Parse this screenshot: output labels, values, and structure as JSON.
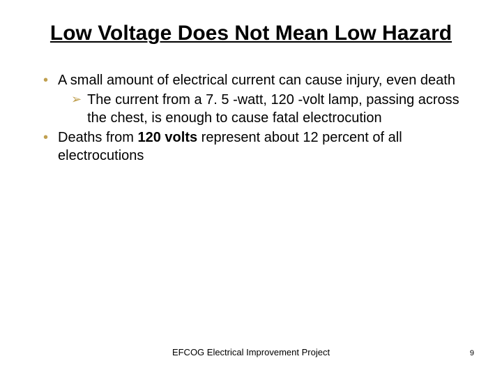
{
  "title": "Low Voltage Does Not Mean Low Hazard",
  "bullets": {
    "item0": "A small amount of electrical current can cause injury, even death",
    "sub0": "The current from a 7. 5 -watt, 120 -volt lamp, passing across the chest, is enough to cause fatal electrocution",
    "item1_pre": "Deaths from ",
    "item1_bold": "120 volts",
    "item1_post": " represent about 12 percent of all electrocutions"
  },
  "footer": "EFCOG Electrical Improvement Project",
  "page_number": "9",
  "colors": {
    "bullet_accent": "#c0a050",
    "text": "#000000",
    "background": "#ffffff"
  },
  "typography": {
    "title_fontsize": 30,
    "body_fontsize": 20,
    "footer_fontsize": 13,
    "pagenum_fontsize": 11
  }
}
